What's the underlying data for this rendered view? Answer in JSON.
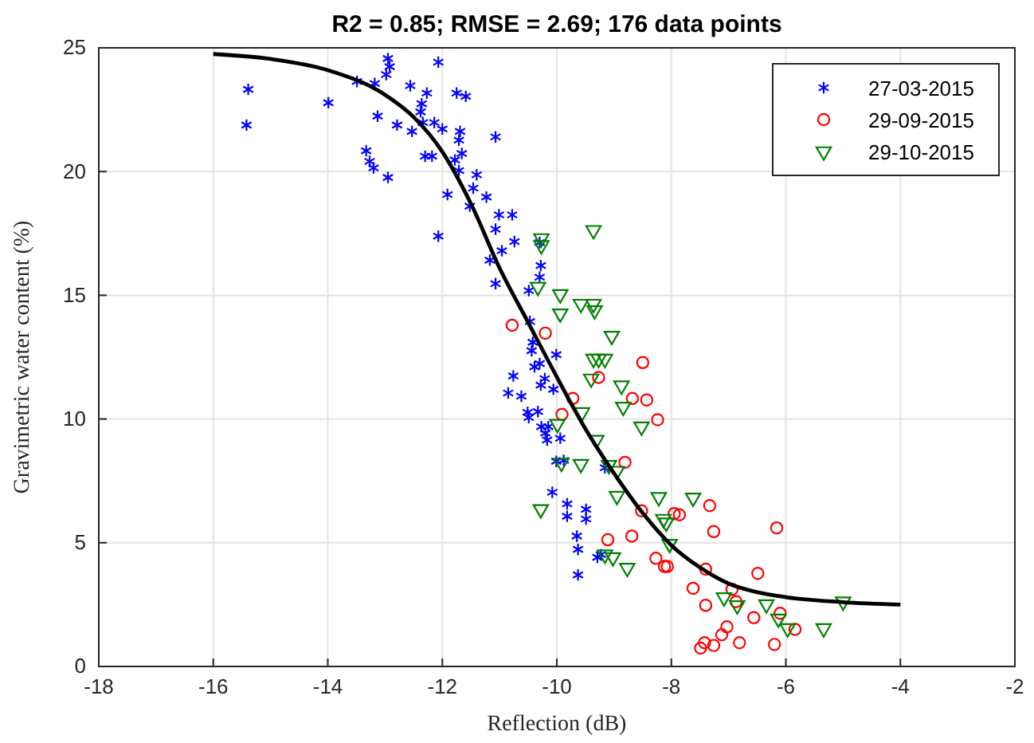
{
  "chart_data": {
    "type": "scatter",
    "title": "R2 = 0.85; RMSE = 2.69; 176 data points",
    "xlabel": "Reflection (dB)",
    "ylabel": "Gravimetric water content (%)",
    "xlim": [
      -18,
      -2
    ],
    "xticks": [
      -18,
      -16,
      -14,
      -12,
      -10,
      -8,
      -6,
      -4,
      -2
    ],
    "ylim": [
      0,
      25
    ],
    "yticks": [
      0,
      5,
      10,
      15,
      20,
      25
    ],
    "grid": true,
    "legend": "top right",
    "series": [
      {
        "name": "27-03-2015",
        "color": "#0000ff",
        "marker": "cross",
        "x": [
          -15.39,
          -15.42,
          -13.99,
          -13.49,
          -13.18,
          -12.95,
          -12.92,
          -12.98,
          -12.07,
          -12.56,
          -12.27,
          -12.36,
          -12.38,
          -13.13,
          -12.79,
          -12.53,
          -12.34,
          -12.14,
          -12.0,
          -11.75,
          -11.59,
          -11.69,
          -11.71,
          -11.07,
          -13.33,
          -13.27,
          -13.2,
          -12.95,
          -12.3,
          -12.18,
          -11.78,
          -11.66,
          -11.71,
          -11.4,
          -11.91,
          -11.46,
          -11.23,
          -11.52,
          -11.01,
          -10.78,
          -11.07,
          -12.07,
          -10.96,
          -10.74,
          -11.17,
          -11.07,
          -10.49,
          -10.3,
          -10.28,
          -10.3,
          -10.47,
          -10.42,
          -10.44,
          -10.01,
          -10.3,
          -10.39,
          -10.76,
          -10.21,
          -10.28,
          -10.06,
          -10.85,
          -10.62,
          -10.51,
          -10.33,
          -10.49,
          -10.27,
          -10.15,
          -10.2,
          -10.17,
          -9.94,
          -10.01,
          -9.88,
          -10.08,
          -9.82,
          -9.82,
          -9.49,
          -9.49,
          -9.65,
          -9.63,
          -9.29,
          -9.23,
          -9.63,
          -9.16
        ],
        "values": [
          23.32,
          21.88,
          22.78,
          23.64,
          23.56,
          24.57,
          24.24,
          23.92,
          24.42,
          23.47,
          23.17,
          22.74,
          22.41,
          22.24,
          21.88,
          21.62,
          21.98,
          21.98,
          21.72,
          23.17,
          23.04,
          21.62,
          21.27,
          21.4,
          20.84,
          20.41,
          20.15,
          19.76,
          20.62,
          20.62,
          20.47,
          20.73,
          20.04,
          19.87,
          19.07,
          19.33,
          18.97,
          18.6,
          18.25,
          18.25,
          17.67,
          17.39,
          16.8,
          17.17,
          16.42,
          15.47,
          15.19,
          17.13,
          16.2,
          15.73,
          13.94,
          13.1,
          12.76,
          12.6,
          12.24,
          12.11,
          11.74,
          11.63,
          11.37,
          11.2,
          11.05,
          10.92,
          10.27,
          10.3,
          10.06,
          9.69,
          9.69,
          9.43,
          9.15,
          9.22,
          8.29,
          8.33,
          7.04,
          6.57,
          6.07,
          6.35,
          5.96,
          5.27,
          4.73,
          4.41,
          4.52,
          3.7,
          8.03
        ]
      },
      {
        "name": "29-09-2015",
        "color": "#ff0000",
        "marker": "circle",
        "x": [
          -10.78,
          -10.2,
          -8.5,
          -9.27,
          -9.72,
          -9.91,
          -8.68,
          -8.43,
          -8.24,
          -8.81,
          -8.52,
          -7.95,
          -7.86,
          -7.33,
          -7.26,
          -8.69,
          -9.11,
          -8.27,
          -8.12,
          -8.07,
          -7.4,
          -7.62,
          -7.4,
          -6.94,
          -6.49,
          -6.16,
          -6.87,
          -6.56,
          -6.1,
          -5.84,
          -7.03,
          -7.12,
          -6.81,
          -7.26,
          -7.42,
          -7.49,
          -6.2
        ],
        "values": [
          13.79,
          13.47,
          12.28,
          11.68,
          10.83,
          10.19,
          10.83,
          10.77,
          9.97,
          8.25,
          6.29,
          6.18,
          6.13,
          6.5,
          5.45,
          5.27,
          5.12,
          4.37,
          4.04,
          4.04,
          3.93,
          3.16,
          2.47,
          3.12,
          3.76,
          5.6,
          2.62,
          1.97,
          2.15,
          1.5,
          1.6,
          1.28,
          0.96,
          0.85,
          0.96,
          0.74,
          0.89
        ]
      },
      {
        "name": "29-10-2015",
        "color": "#008000",
        "marker": "triangle",
        "x": [
          -10.27,
          -10.27,
          -9.36,
          -10.33,
          -9.94,
          -9.94,
          -9.58,
          -9.36,
          -9.34,
          -9.04,
          -9.36,
          -9.27,
          -9.16,
          -9.4,
          -8.87,
          -8.84,
          -9.56,
          -9.99,
          -8.52,
          -9.31,
          -9.92,
          -9.58,
          -9.09,
          -8.95,
          -8.95,
          -8.22,
          -7.62,
          -10.28,
          -8.14,
          -8.09,
          -8.03,
          -9.16,
          -9.02,
          -8.77,
          -7.08,
          -6.85,
          -6.34,
          -6.13,
          -5.97,
          -5.34,
          -5.0
        ],
        "values": [
          17.3,
          17.02,
          17.63,
          15.34,
          15.04,
          14.26,
          14.65,
          14.65,
          14.39,
          13.36,
          12.43,
          12.43,
          12.43,
          11.63,
          11.35,
          10.49,
          10.27,
          9.8,
          9.69,
          9.15,
          8.23,
          8.18,
          8.14,
          7.9,
          6.89,
          6.84,
          6.82,
          6.35,
          5.96,
          5.81,
          4.95,
          4.52,
          4.41,
          3.98,
          2.79,
          2.47,
          2.51,
          1.93,
          1.54,
          1.54,
          2.62
        ]
      },
      {
        "type": "line",
        "color": "#000000",
        "marker": "none",
        "line_style": "solid",
        "x": [
          -16,
          -15,
          -14,
          -13,
          -12.5,
          -12,
          -11.5,
          -11,
          -10.5,
          -10,
          -9.5,
          -9,
          -8.5,
          -8,
          -7.5,
          -7,
          -6.5,
          -6,
          -5,
          -4
        ],
        "values": [
          24.75,
          24.55,
          24.1,
          23.1,
          22.2,
          20.8,
          18.7,
          16.1,
          13.9,
          11.7,
          9.6,
          7.8,
          6.2,
          4.9,
          4.0,
          3.35,
          3.0,
          2.8,
          2.6,
          2.5
        ]
      }
    ]
  }
}
